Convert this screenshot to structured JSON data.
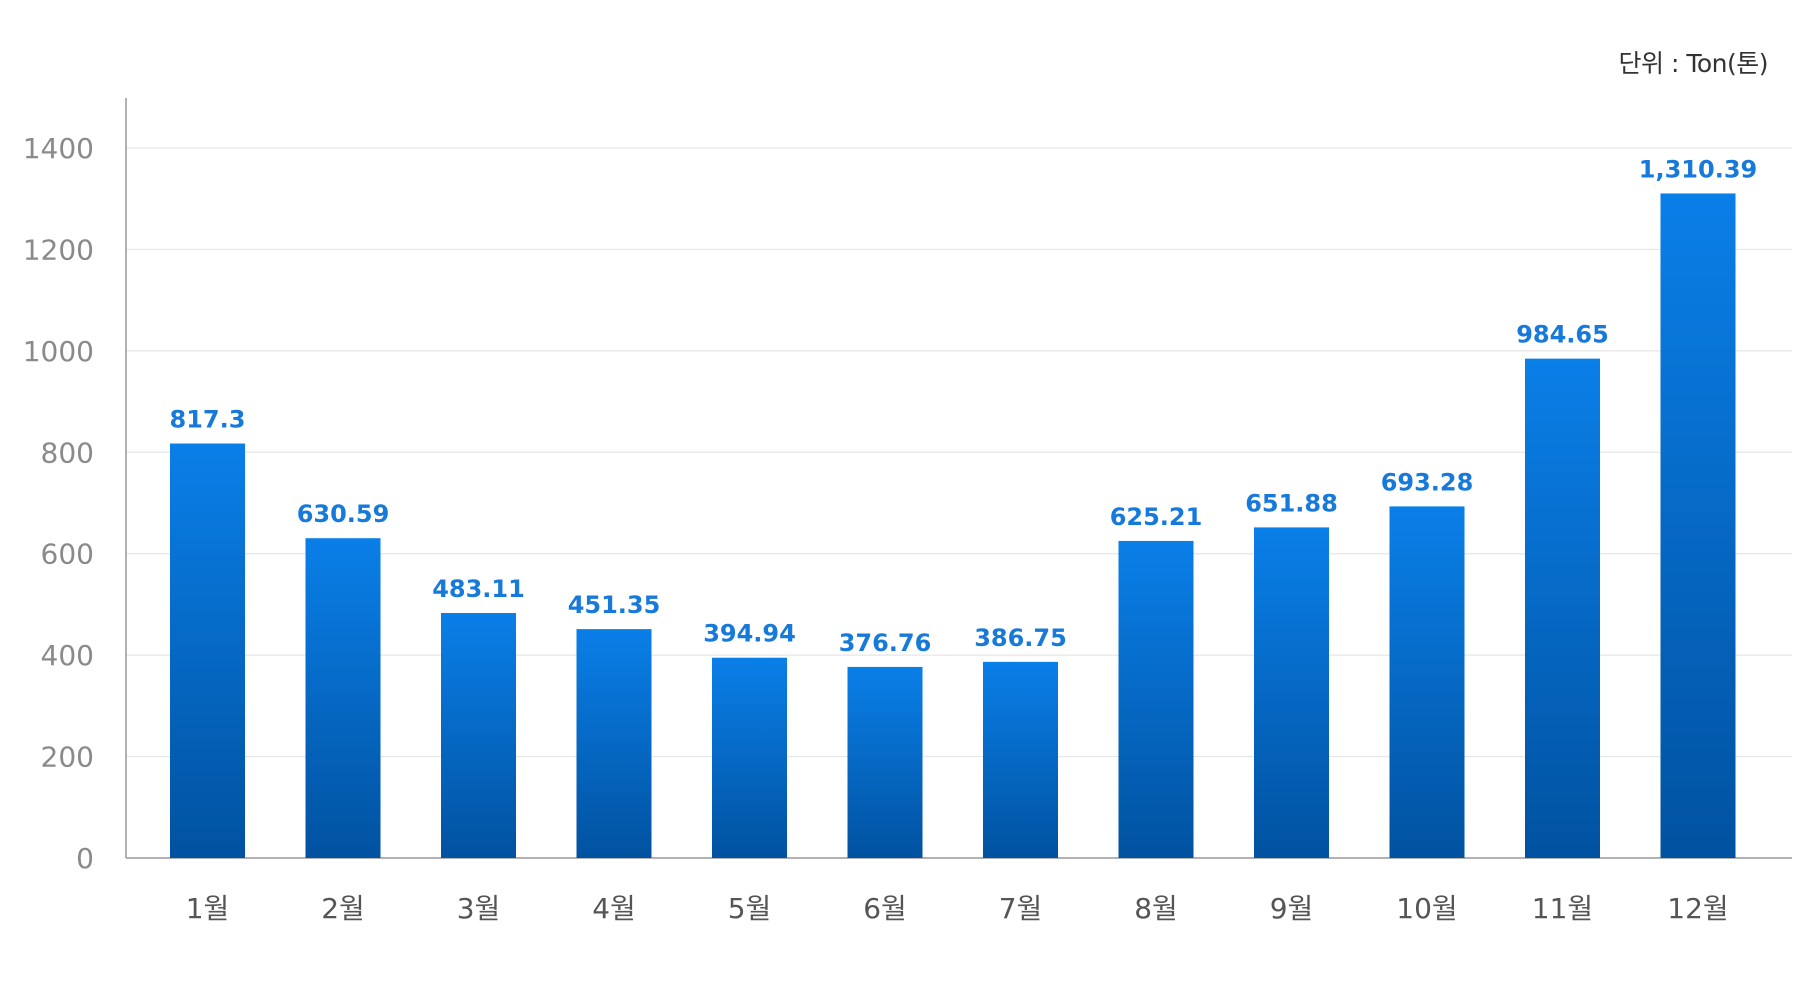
{
  "chart_data": {
    "type": "bar",
    "unit_label": "단위 : Ton(톤)",
    "categories": [
      "1월",
      "2월",
      "3월",
      "4월",
      "5월",
      "6월",
      "7월",
      "8월",
      "9월",
      "10월",
      "11월",
      "12월"
    ],
    "values": [
      817.3,
      630.59,
      483.11,
      451.35,
      394.94,
      376.76,
      386.75,
      625.21,
      651.88,
      693.28,
      984.65,
      1310.39
    ],
    "value_labels": [
      "817.3",
      "630.59",
      "483.11",
      "451.35",
      "394.94",
      "376.76",
      "386.75",
      "625.21",
      "651.88",
      "693.28",
      "984.65",
      "1,310.39"
    ],
    "yticks": [
      0,
      200,
      400,
      600,
      800,
      1000,
      1200,
      1400
    ],
    "ylim": [
      0,
      1400
    ],
    "grid": true,
    "colors": {
      "bar_top": "#0a7fe8",
      "bar_bottom": "#0152a0",
      "value_label": "#1779d9",
      "tick_label": "#8a8a8a",
      "category_label": "#555555",
      "grid": "#e6e6e6",
      "axis": "#999999"
    }
  }
}
